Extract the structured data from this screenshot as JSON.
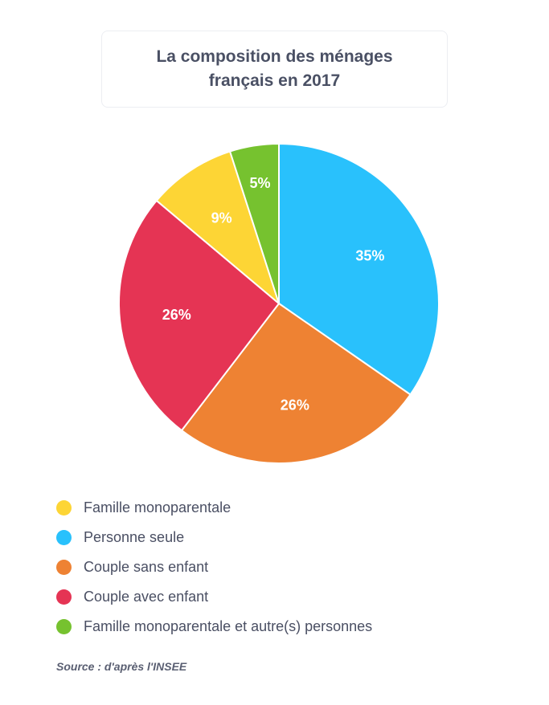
{
  "header": {
    "title_line1": "La composition des ménages",
    "title_line2": "français en 2017"
  },
  "chart_data": {
    "type": "pie",
    "title": "La composition des ménages français en 2017",
    "slices": [
      {
        "name": "Personne seule",
        "value": 35,
        "label": "35%",
        "color": "#29c1fc"
      },
      {
        "name": "Couple sans enfant",
        "value": 26,
        "label": "26%",
        "color": "#ee8233"
      },
      {
        "name": "Couple avec enfant",
        "value": 26,
        "label": "26%",
        "color": "#e53454"
      },
      {
        "name": "Famille monoparentale",
        "value": 9,
        "label": "9%",
        "color": "#fdd535"
      },
      {
        "name": "Famille monoparentale et autre(s) personnes",
        "value": 5,
        "label": "5%",
        "color": "#76c22f"
      }
    ]
  },
  "legend": [
    {
      "label": "Famille monoparentale",
      "color": "#fdd535"
    },
    {
      "label": "Personne seule",
      "color": "#29c1fc"
    },
    {
      "label": "Couple sans enfant",
      "color": "#ee8233"
    },
    {
      "label": "Couple avec enfant",
      "color": "#e53454"
    },
    {
      "label": "Famille monoparentale et autre(s) personnes",
      "color": "#76c22f"
    }
  ],
  "source": "Source : d'après l'INSEE"
}
